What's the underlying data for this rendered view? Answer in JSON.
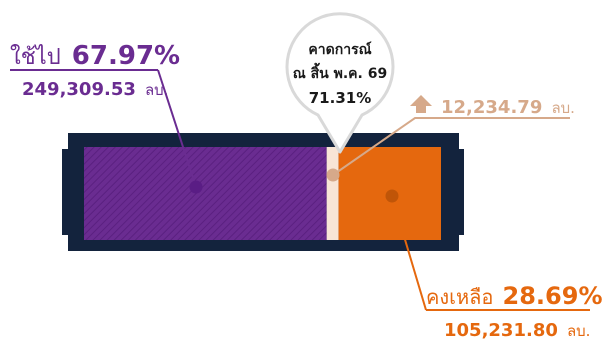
{
  "colors": {
    "used": "#6a2c91",
    "forecast": "#f8e5d6",
    "remaining": "#e5680e",
    "frame": "#13233d",
    "increase": "#d6a98a",
    "callout_border": "#d9d9d9"
  },
  "labels": {
    "used": "ใช้ไป",
    "used_pct": "67.97%",
    "used_amount": "249,309.53",
    "remaining": "คงเหลือ",
    "remaining_pct": "28.69%",
    "remaining_amount": "105,231.80",
    "unit": "ลบ.",
    "increase_amount": "12,234.79",
    "callout_line1": "คาดการณ์",
    "callout_line2": "ณ สิ้น พ.ค. 69",
    "callout_pct": "71.31%"
  },
  "chart_data": {
    "type": "bar",
    "orientation": "horizontal",
    "stacked": true,
    "segments": [
      {
        "name": "ใช้ไป",
        "percent": 67.97,
        "amount": 249309.53,
        "color": "#6a2c91"
      },
      {
        "name": "คาดการณ์เพิ่ม",
        "percent": 3.34,
        "amount": 12234.79,
        "color": "#f8e5d6"
      },
      {
        "name": "คงเหลือ",
        "percent": 28.69,
        "amount": 105231.8,
        "color": "#e5680e"
      }
    ],
    "forecast_total_percent": 71.31,
    "unit": "ลบ."
  }
}
